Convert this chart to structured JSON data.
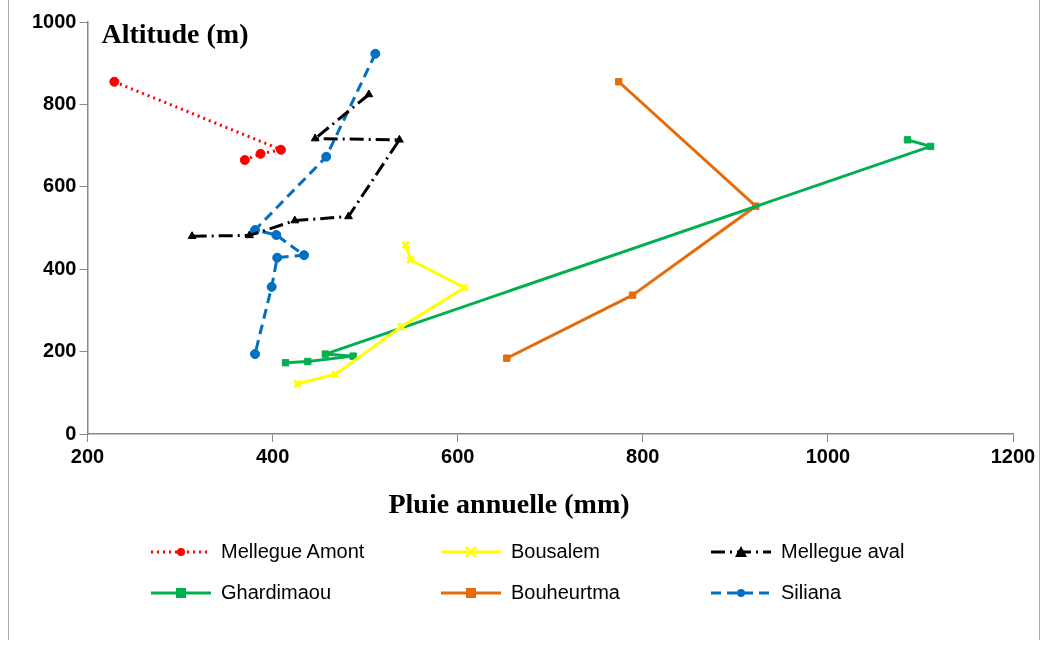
{
  "chart_data": {
    "type": "line",
    "xlabel": "Pluie annuelle (mm)",
    "ylabel": "Altitude (m)",
    "xlim": [
      200,
      1200
    ],
    "xticks": [
      200,
      400,
      600,
      800,
      1000,
      1200
    ],
    "ylim": [
      0,
      1000
    ],
    "yticks": [
      0,
      200,
      400,
      600,
      800,
      1000
    ],
    "grid": false,
    "legend": "bottom",
    "series": [
      {
        "name": "Mellegue Amont",
        "color": "#ff0000",
        "marker": "circle",
        "line_style": "dotted",
        "x": [
          229,
          409,
          387,
          370
        ],
        "values": [
          855,
          690,
          680,
          665
        ]
      },
      {
        "name": "Bousalem",
        "color": "#ffff00",
        "marker": "cross",
        "line_style": "solid",
        "x": [
          544,
          549,
          607,
          539,
          468,
          427
        ],
        "values": [
          459,
          423,
          355,
          260,
          145,
          122
        ]
      },
      {
        "name": "Mellegue aval",
        "color": "#000000",
        "marker": "triangle",
        "line_style": "dashdot",
        "x": [
          504,
          446,
          537,
          482,
          424,
          375,
          313
        ],
        "values": [
          824,
          717,
          714,
          528,
          518,
          482,
          480
        ]
      },
      {
        "name": "Ghardimaou",
        "color": "#00b050",
        "marker": "square",
        "line_style": "solid",
        "x": [
          1086,
          1111,
          457,
          487,
          438,
          414
        ],
        "values": [
          714,
          698,
          194,
          189,
          176,
          173
        ]
      },
      {
        "name": "Bouheurtma",
        "color": "#e46c0a",
        "marker": "square",
        "line_style": "solid",
        "x": [
          774,
          922,
          789,
          653
        ],
        "values": [
          855,
          553,
          337,
          184
        ]
      },
      {
        "name": "Siliana",
        "color": "#0070c0",
        "marker": "circle",
        "line_style": "dashed",
        "x": [
          511,
          458,
          381,
          404,
          434,
          405,
          399,
          381
        ],
        "values": [
          923,
          673,
          495,
          483,
          434,
          428,
          357,
          194
        ]
      }
    ]
  }
}
